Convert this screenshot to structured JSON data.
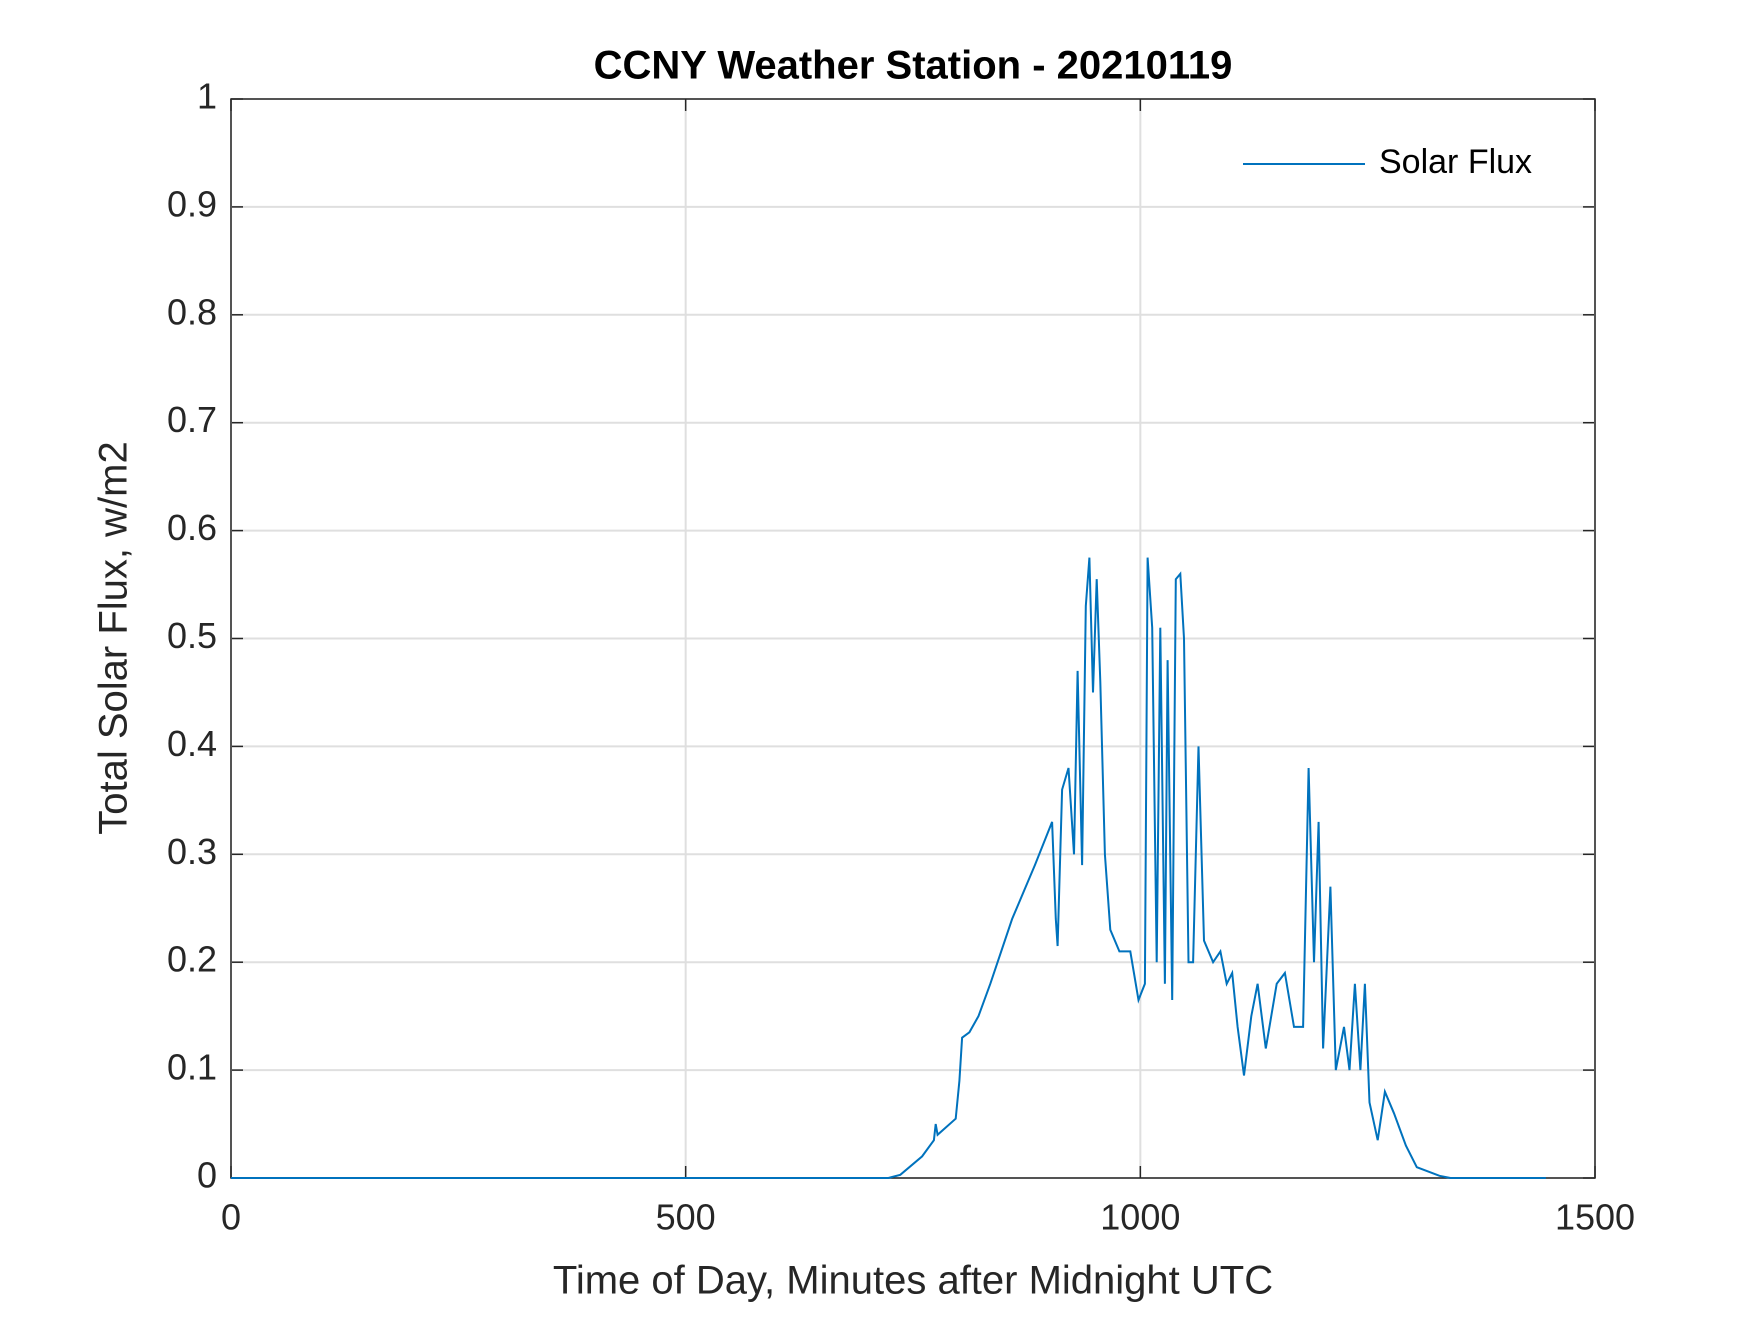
{
  "chart_data": {
    "type": "line",
    "title": "CCNY Weather Station - 20210119",
    "x_label": "Time of Day, Minutes after Midnight UTC",
    "y_label": "Total Solar Flux, w/m2",
    "xlim": [
      0,
      1500
    ],
    "xticks": [
      0,
      500,
      1000,
      1500
    ],
    "ylim": [
      0,
      1
    ],
    "yticks": [
      0,
      0.1,
      0.2,
      0.3,
      0.4,
      0.5,
      0.6,
      0.7,
      0.8,
      0.9,
      1
    ],
    "grid": true,
    "legend": "northeast",
    "series": [
      {
        "name": "Solar Flux",
        "color": "#0072bd",
        "x": [
          0,
          723,
          736,
          760,
          773,
          775,
          777,
          797,
          801,
          804,
          812,
          822,
          835,
          859,
          884,
          903,
          907,
          909,
          914,
          921,
          927,
          931,
          936,
          940,
          944,
          948,
          952,
          956,
          961,
          967,
          977,
          989,
          998,
          1005,
          1008,
          1013,
          1018,
          1022,
          1027,
          1030,
          1035,
          1039,
          1044,
          1048,
          1053,
          1058,
          1064,
          1070,
          1080,
          1088,
          1095,
          1101,
          1107,
          1114,
          1122,
          1129,
          1138,
          1150,
          1159,
          1169,
          1179,
          1185,
          1191,
          1196,
          1201,
          1209,
          1215,
          1224,
          1230,
          1236,
          1242,
          1247,
          1252,
          1261,
          1269,
          1279,
          1292,
          1304,
          1329,
          1341,
          1446
        ],
        "values": [
          0,
          0,
          0.003,
          0.02,
          0.035,
          0.05,
          0.04,
          0.055,
          0.09,
          0.13,
          0.135,
          0.15,
          0.18,
          0.24,
          0.29,
          0.33,
          0.24,
          0.215,
          0.36,
          0.38,
          0.3,
          0.47,
          0.29,
          0.53,
          0.575,
          0.45,
          0.555,
          0.46,
          0.3,
          0.23,
          0.21,
          0.21,
          0.165,
          0.18,
          0.575,
          0.51,
          0.2,
          0.51,
          0.18,
          0.48,
          0.165,
          0.555,
          0.56,
          0.5,
          0.2,
          0.2,
          0.4,
          0.22,
          0.2,
          0.21,
          0.18,
          0.19,
          0.14,
          0.095,
          0.15,
          0.18,
          0.12,
          0.18,
          0.19,
          0.14,
          0.14,
          0.38,
          0.2,
          0.33,
          0.12,
          0.27,
          0.1,
          0.14,
          0.1,
          0.18,
          0.1,
          0.18,
          0.07,
          0.035,
          0.08,
          0.06,
          0.03,
          0.01,
          0.002,
          0,
          0
        ]
      }
    ]
  }
}
